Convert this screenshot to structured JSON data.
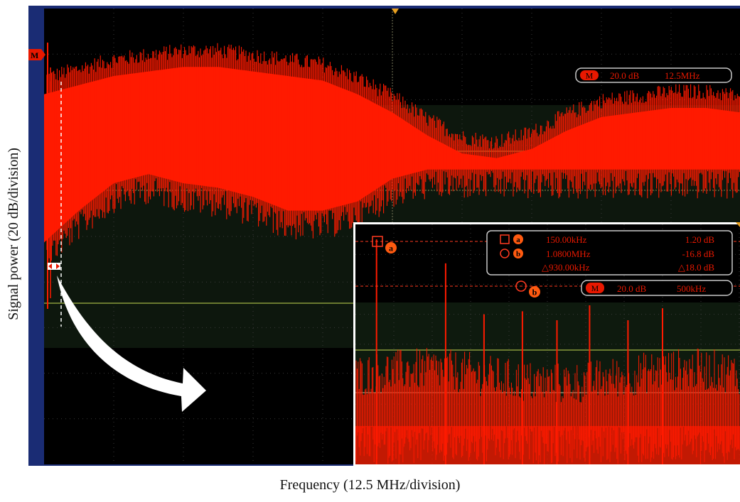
{
  "chart_data": [
    {
      "type": "line",
      "name": "main-spectrum",
      "xlabel": "Frequency (12.5 MHz/division)",
      "ylabel": "Signal power (20 dB/division)",
      "x_per_division": "12.5 MHz",
      "y_per_division": "20 dB",
      "grid": true,
      "readout": {
        "badge": "M",
        "scale": "20.0 dB",
        "span": "12.5MHz"
      },
      "marker_label": "M",
      "color": "#ff1a00",
      "x": [
        0,
        0.5,
        1,
        1.5,
        2,
        2.5,
        3,
        3.5,
        4,
        4.5,
        5,
        5.5,
        6,
        6.5,
        7,
        7.5,
        8,
        8.5,
        9,
        9.5,
        10
      ],
      "y_upper": [
        1.6,
        1.4,
        1.2,
        1.1,
        1.0,
        1.0,
        1.1,
        1.2,
        1.3,
        1.6,
        2.0,
        2.5,
        2.9,
        3.0,
        2.8,
        2.4,
        2.1,
        2.0,
        1.9,
        1.9,
        2.0
      ],
      "y_lower": [
        5.6,
        4.9,
        4.3,
        4.1,
        4.3,
        4.4,
        4.6,
        4.9,
        4.9,
        4.7,
        4.2,
        4.0,
        4.0,
        4.0,
        4.0,
        4.0,
        4.0,
        4.0,
        4.0,
        4.0,
        4.0
      ]
    },
    {
      "type": "line",
      "name": "zoom-inset",
      "readout": {
        "badge": "M",
        "scale": "20.0 dB",
        "span": "500kHz"
      },
      "markers": [
        {
          "id": "a",
          "shape": "square",
          "freq": "150.00kHz",
          "level": "1.20 dB"
        },
        {
          "id": "b",
          "shape": "circle",
          "freq": "1.0800MHz",
          "level": "-16.8 dB"
        }
      ],
      "delta": {
        "freq": "△930.00kHz",
        "level": "△18.0 dB"
      },
      "peak_x": [
        0.55,
        2.35,
        3.35,
        4.35,
        5.25,
        6.1,
        7.1,
        8.0
      ],
      "peak_y": [
        0.5,
        1.3,
        3.0,
        2.9,
        3.2,
        2.7,
        3.2,
        2.8
      ],
      "color": "#ff1a00"
    }
  ]
}
